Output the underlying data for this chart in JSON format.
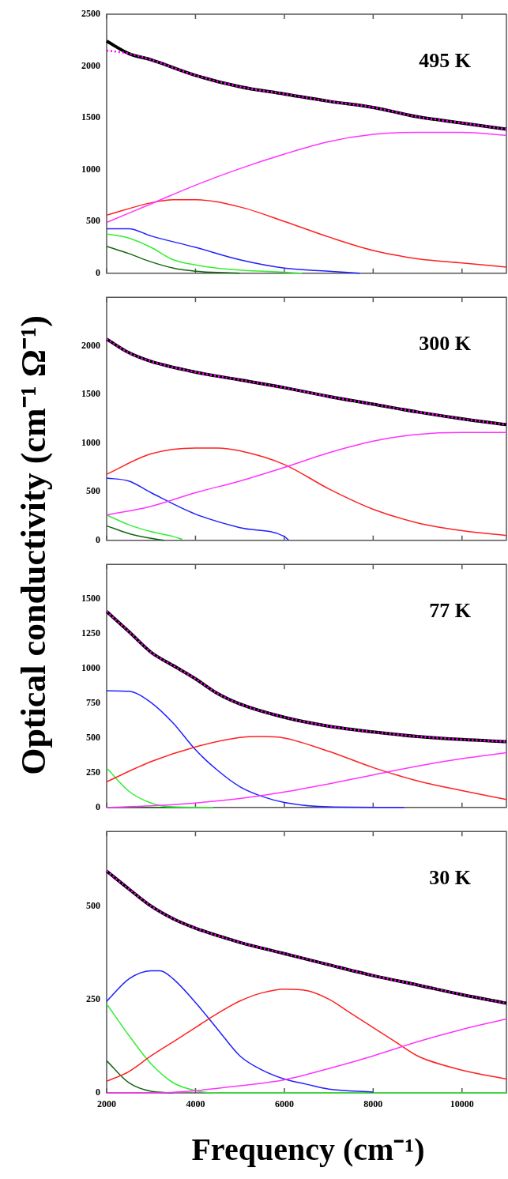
{
  "chart_data": [
    {
      "type": "line",
      "ylabel": "Optical conductivity  (cm⁻¹ Ω⁻¹)",
      "annotations": [
        "495 K"
      ],
      "xlim": [
        2000,
        11000
      ],
      "xticks": [
        2000,
        4000,
        6000,
        8000,
        10000
      ],
      "ylim": [
        0,
        2500
      ],
      "yticks": [
        0,
        500,
        1000,
        1500,
        2000,
        2500
      ],
      "tick_labels": "y",
      "series": [
        {
          "color": "#000000",
          "x": [
            2000,
            2500,
            3000,
            4000,
            5000,
            6000,
            7000,
            8000,
            9000,
            10000,
            11000
          ],
          "values": [
            2240,
            2120,
            2060,
            1910,
            1800,
            1730,
            1660,
            1600,
            1510,
            1450,
            1390
          ]
        },
        {
          "color": "#ff00ff",
          "line_style": "dotted",
          "x": [
            2000,
            2500,
            3000,
            4000,
            5000,
            6000,
            7000,
            8000,
            9000,
            10000,
            11000
          ],
          "values": [
            2150,
            2120,
            2060,
            1910,
            1800,
            1730,
            1660,
            1600,
            1510,
            1450,
            1390
          ]
        },
        {
          "color": "#ff33ff",
          "x": [
            2000,
            3000,
            4000,
            5000,
            6000,
            7000,
            8000,
            9000,
            10000,
            11000
          ],
          "values": [
            490,
            670,
            850,
            1010,
            1150,
            1270,
            1340,
            1360,
            1360,
            1330
          ]
        },
        {
          "color": "#ff2020",
          "x": [
            2000,
            3000,
            3500,
            4000,
            5000,
            6000,
            7000,
            8000,
            9000,
            10000,
            11000
          ],
          "values": [
            560,
            680,
            710,
            710,
            640,
            500,
            350,
            220,
            140,
            100,
            60
          ]
        },
        {
          "color": "#2020ff",
          "x": [
            2000,
            2500,
            3000,
            4000,
            5000,
            6000,
            7000,
            7700
          ],
          "values": [
            430,
            430,
            360,
            250,
            130,
            50,
            20,
            0
          ]
        },
        {
          "color": "#33ee33",
          "x": [
            2000,
            2500,
            3000,
            3500,
            4000,
            5000,
            6000,
            6400
          ],
          "values": [
            380,
            340,
            250,
            130,
            80,
            30,
            10,
            0
          ]
        },
        {
          "color": "#116611",
          "x": [
            2000,
            2500,
            3000,
            3500,
            4000,
            5000
          ],
          "values": [
            260,
            190,
            110,
            50,
            20,
            0
          ]
        }
      ]
    },
    {
      "type": "line",
      "annotations": [
        "300 K"
      ],
      "xlim": [
        2000,
        11000
      ],
      "xticks": [
        2000,
        4000,
        6000,
        8000,
        10000
      ],
      "ylim": [
        0,
        2500
      ],
      "yticks": [
        0,
        500,
        1000,
        1500,
        2000
      ],
      "tick_labels": "y",
      "series": [
        {
          "color": "#000000",
          "x": [
            2000,
            2500,
            3000,
            4000,
            5000,
            6000,
            7000,
            8000,
            9000,
            10000,
            11000
          ],
          "values": [
            2070,
            1930,
            1840,
            1730,
            1650,
            1570,
            1480,
            1400,
            1320,
            1250,
            1190
          ]
        },
        {
          "color": "#ff00ff",
          "line_style": "dotted",
          "x": [
            2000,
            2500,
            3000,
            4000,
            5000,
            6000,
            7000,
            8000,
            9000,
            10000,
            11000
          ],
          "values": [
            2070,
            1930,
            1840,
            1730,
            1650,
            1570,
            1480,
            1400,
            1320,
            1250,
            1190
          ]
        },
        {
          "color": "#ff33ff",
          "x": [
            2000,
            3000,
            4000,
            5000,
            6000,
            7000,
            8000,
            9000,
            10000,
            11000
          ],
          "values": [
            260,
            350,
            490,
            610,
            750,
            900,
            1020,
            1090,
            1110,
            1110
          ]
        },
        {
          "color": "#ff2020",
          "x": [
            2000,
            3000,
            4000,
            4500,
            5000,
            6000,
            7000,
            8000,
            9000,
            10000,
            11000
          ],
          "values": [
            680,
            890,
            950,
            950,
            920,
            780,
            530,
            320,
            180,
            100,
            50
          ]
        },
        {
          "color": "#2020ff",
          "x": [
            2000,
            2500,
            3000,
            4000,
            5000,
            6000,
            6100
          ],
          "values": [
            640,
            610,
            490,
            270,
            130,
            40,
            0
          ]
        },
        {
          "color": "#33ee33",
          "x": [
            2000,
            2500,
            3000,
            3500,
            3700
          ],
          "values": [
            260,
            160,
            90,
            40,
            10
          ]
        },
        {
          "color": "#116611",
          "x": [
            2000,
            2500,
            3000,
            3300
          ],
          "values": [
            150,
            70,
            20,
            0
          ]
        }
      ]
    },
    {
      "type": "line",
      "annotations": [
        "77 K"
      ],
      "xlim": [
        2000,
        11000
      ],
      "xticks": [
        2000,
        4000,
        6000,
        8000,
        10000
      ],
      "ylim": [
        0,
        1750
      ],
      "yticks": [
        0,
        250,
        500,
        750,
        1000,
        1250,
        1500
      ],
      "tick_labels": "y",
      "series": [
        {
          "color": "#000000",
          "x": [
            2000,
            2500,
            3000,
            3500,
            4000,
            4500,
            5000,
            6000,
            7000,
            8000,
            9000,
            10000,
            11000
          ],
          "values": [
            1411,
            1266,
            1117,
            1021,
            926,
            819,
            745,
            649,
            585,
            543,
            511,
            489,
            474
          ]
        },
        {
          "color": "#ff00ff",
          "line_style": "dotted",
          "x": [
            2000,
            2500,
            3000,
            3500,
            4000,
            4500,
            5000,
            6000,
            7000,
            8000,
            9000,
            10000,
            11000
          ],
          "values": [
            1411,
            1266,
            1117,
            1021,
            926,
            819,
            745,
            649,
            585,
            543,
            511,
            489,
            474
          ]
        },
        {
          "color": "#ff33ff",
          "x": [
            2000,
            3000,
            4000,
            5000,
            6000,
            7000,
            8000,
            9000,
            10000,
            11000
          ],
          "values": [
            0,
            11,
            32,
            64,
            111,
            170,
            234,
            298,
            351,
            394
          ]
        },
        {
          "color": "#ff2020",
          "x": [
            2000,
            3000,
            4000,
            5000,
            5500,
            6000,
            7000,
            8000,
            9000,
            10000,
            11000
          ],
          "values": [
            185,
            330,
            436,
            504,
            511,
            500,
            404,
            287,
            191,
            121,
            57
          ]
        },
        {
          "color": "#2020ff",
          "x": [
            2000,
            2500,
            3000,
            3500,
            4000,
            4500,
            5000,
            5500,
            6000,
            7000,
            8700
          ],
          "values": [
            840,
            836,
            755,
            606,
            415,
            266,
            149,
            79,
            36,
            4,
            0
          ]
        },
        {
          "color": "#33ee33",
          "x": [
            2000,
            2500,
            3000,
            3500,
            4400
          ],
          "values": [
            283,
            117,
            32,
            4,
            0
          ]
        },
        {
          "color": "#116611",
          "x": [
            2000,
            4400
          ],
          "values": [
            0,
            0
          ]
        }
      ]
    },
    {
      "type": "line",
      "xlabel": "Frequency (cm⁻¹)",
      "annotations": [
        "30 K"
      ],
      "xlim": [
        2000,
        11000
      ],
      "xticks": [
        2000,
        4000,
        6000,
        8000,
        10000
      ],
      "ylim": [
        0,
        700
      ],
      "yticks": [
        0,
        250,
        500
      ],
      "series": [
        {
          "color": "#000000",
          "x": [
            2000,
            2500,
            3000,
            3500,
            4000,
            5000,
            6000,
            7000,
            8000,
            9000,
            10000,
            11000
          ],
          "values": [
            594,
            546,
            500,
            466,
            441,
            403,
            373,
            343,
            314,
            289,
            263,
            240
          ]
        },
        {
          "color": "#ff00ff",
          "line_style": "dotted",
          "x": [
            2000,
            2500,
            3000,
            3500,
            4000,
            5000,
            6000,
            7000,
            8000,
            9000,
            10000,
            11000
          ],
          "values": [
            594,
            546,
            500,
            466,
            441,
            403,
            373,
            343,
            314,
            289,
            263,
            240
          ]
        },
        {
          "color": "#ff33ff",
          "x": [
            2000,
            3000,
            4000,
            5000,
            6000,
            7000,
            8000,
            9000,
            10000,
            11000
          ],
          "values": [
            0,
            0,
            6,
            19,
            35,
            65,
            99,
            137,
            170,
            198
          ]
        },
        {
          "color": "#ff2020",
          "x": [
            2000,
            2500,
            3000,
            3500,
            4000,
            4500,
            5000,
            5500,
            6000,
            6500,
            7000,
            7500,
            8000,
            8500,
            9000,
            10000,
            11000
          ],
          "values": [
            31,
            57,
            99,
            137,
            175,
            213,
            246,
            268,
            278,
            274,
            251,
            213,
            175,
            137,
            99,
            61,
            37
          ]
        },
        {
          "color": "#2020ff",
          "x": [
            2000,
            2500,
            3000,
            3200,
            3500,
            4000,
            4500,
            5000,
            5500,
            6000,
            6500,
            7000,
            8000
          ],
          "values": [
            245,
            305,
            327,
            327,
            305,
            242,
            170,
            99,
            61,
            37,
            23,
            10,
            2
          ]
        },
        {
          "color": "#33ee33",
          "x": [
            2000,
            2500,
            3000,
            3500,
            4000,
            4500,
            11000
          ],
          "values": [
            238,
            154,
            78,
            27,
            6,
            0,
            0
          ]
        },
        {
          "color": "#116611",
          "x": [
            2000,
            2500,
            3000,
            3500
          ],
          "values": [
            86,
            27,
            4,
            0
          ]
        }
      ]
    }
  ]
}
